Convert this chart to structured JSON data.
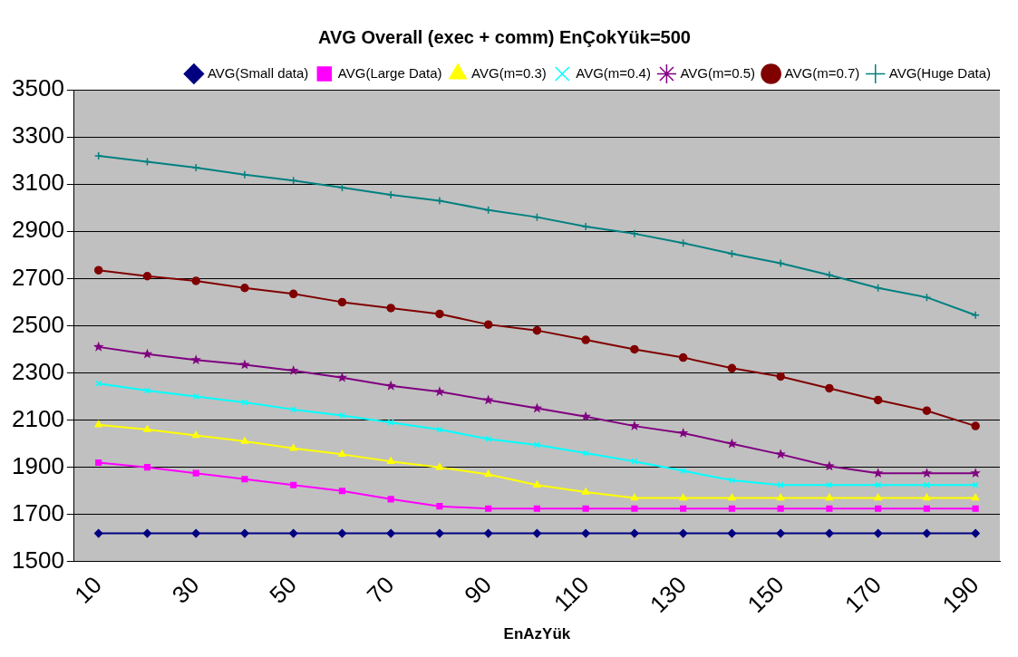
{
  "chart_data": {
    "type": "line",
    "title": "AVG Overall (exec + comm) EnÇokYük=500",
    "xlabel": "EnAzYük",
    "categories": [
      "10",
      null,
      "30",
      null,
      "50",
      null,
      "70",
      null,
      "90",
      null,
      "110",
      null,
      "130",
      null,
      "150",
      null,
      "170",
      null,
      "190"
    ],
    "ylim": [
      1500,
      3500
    ],
    "yticks": [
      1500,
      1700,
      1900,
      2100,
      2300,
      2500,
      2700,
      2900,
      3100,
      3300,
      3500
    ],
    "grid": "y",
    "legend": "top right",
    "series": [
      {
        "name": "AVG(Small data)",
        "color": "#000080",
        "marker": "diamond",
        "values": [
          1620,
          1620,
          1620,
          1620,
          1620,
          1620,
          1620,
          1620,
          1620,
          1620,
          1620,
          1620,
          1620,
          1620,
          1620,
          1620,
          1620,
          1620,
          1620
        ]
      },
      {
        "name": "AVG(Large Data)",
        "color": "#ff00ff",
        "marker": "square",
        "values": [
          1920,
          1900,
          1875,
          1850,
          1825,
          1800,
          1765,
          1735,
          1725,
          1725,
          1725,
          1725,
          1725,
          1725,
          1725,
          1725,
          1725,
          1725,
          1725
        ]
      },
      {
        "name": "AVG(m=0.3)",
        "color": "#ffff00",
        "marker": "triangle",
        "values": [
          2080,
          2060,
          2035,
          2010,
          1980,
          1955,
          1925,
          1900,
          1870,
          1825,
          1795,
          1770,
          1770,
          1770,
          1770,
          1770,
          1770,
          1770,
          1770
        ]
      },
      {
        "name": "AVG(m=0.4)",
        "color": "#00ffff",
        "marker": "x",
        "values": [
          2255,
          2225,
          2200,
          2175,
          2145,
          2120,
          2090,
          2060,
          2020,
          1995,
          1960,
          1925,
          1885,
          1845,
          1825,
          1825,
          1825,
          1825,
          1825
        ]
      },
      {
        "name": "AVG(m=0.5)",
        "color": "#800080",
        "marker": "star",
        "values": [
          2410,
          2380,
          2355,
          2335,
          2310,
          2280,
          2245,
          2220,
          2185,
          2150,
          2115,
          2075,
          2045,
          2000,
          1955,
          1905,
          1875,
          1875,
          1875
        ]
      },
      {
        "name": "AVG(m=0.7)",
        "color": "#800000",
        "marker": "circle",
        "values": [
          2735,
          2710,
          2690,
          2660,
          2635,
          2600,
          2575,
          2550,
          2505,
          2480,
          2440,
          2400,
          2365,
          2320,
          2285,
          2235,
          2185,
          2140,
          2075
        ]
      },
      {
        "name": "AVG(Huge Data)",
        "color": "#008080",
        "marker": "cross",
        "values": [
          3220,
          3195,
          3170,
          3140,
          3115,
          3085,
          3055,
          3030,
          2990,
          2960,
          2920,
          2890,
          2850,
          2805,
          2765,
          2715,
          2660,
          2620,
          2545
        ]
      }
    ]
  }
}
